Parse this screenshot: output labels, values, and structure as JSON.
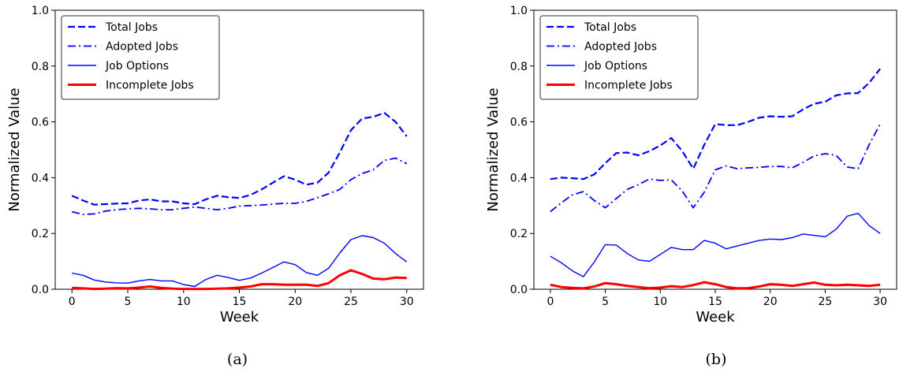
{
  "chart_data": [
    {
      "type": "line",
      "panel_label": "(a)",
      "xlabel": "Week",
      "ylabel": "Normalized Value",
      "xlim": [
        -1.5,
        31.5
      ],
      "ylim": [
        0,
        1.0
      ],
      "xticks": [
        0,
        5,
        10,
        15,
        20,
        25,
        30
      ],
      "yticks": [
        0.0,
        0.2,
        0.4,
        0.6,
        0.8,
        1.0
      ],
      "grid": false,
      "legend_position": "top-left",
      "x": [
        0,
        1,
        2,
        3,
        4,
        5,
        6,
        7,
        8,
        9,
        10,
        11,
        12,
        13,
        14,
        15,
        16,
        17,
        18,
        19,
        20,
        21,
        22,
        23,
        24,
        25,
        26,
        27,
        28,
        29,
        30
      ],
      "series": [
        {
          "name": "Total Jobs",
          "style": "dashed",
          "color": "#0000ff",
          "values": [
            0.335,
            0.318,
            0.303,
            0.305,
            0.307,
            0.308,
            0.318,
            0.322,
            0.315,
            0.315,
            0.308,
            0.305,
            0.322,
            0.335,
            0.33,
            0.327,
            0.338,
            0.358,
            0.382,
            0.405,
            0.393,
            0.375,
            0.382,
            0.418,
            0.49,
            0.57,
            0.612,
            0.618,
            0.632,
            0.6,
            0.548
          ]
        },
        {
          "name": "Adopted Jobs",
          "style": "dashdot",
          "color": "#0000ff",
          "values": [
            0.278,
            0.268,
            0.27,
            0.28,
            0.285,
            0.288,
            0.29,
            0.288,
            0.285,
            0.285,
            0.29,
            0.295,
            0.29,
            0.285,
            0.29,
            0.298,
            0.3,
            0.302,
            0.305,
            0.308,
            0.308,
            0.315,
            0.328,
            0.342,
            0.358,
            0.393,
            0.415,
            0.428,
            0.462,
            0.47,
            0.45
          ]
        },
        {
          "name": "Job Options",
          "style": "solid",
          "color": "#0000ff",
          "values": [
            0.058,
            0.05,
            0.033,
            0.026,
            0.023,
            0.022,
            0.03,
            0.035,
            0.03,
            0.03,
            0.017,
            0.01,
            0.035,
            0.05,
            0.042,
            0.032,
            0.04,
            0.058,
            0.078,
            0.098,
            0.088,
            0.06,
            0.05,
            0.075,
            0.13,
            0.178,
            0.192,
            0.185,
            0.165,
            0.128,
            0.098
          ]
        },
        {
          "name": "Incomplete Jobs",
          "style": "solid-thick",
          "color": "#ff0000",
          "values": [
            0.005,
            0.003,
            0.001,
            0.002,
            0.004,
            0.003,
            0.006,
            0.01,
            0.005,
            0.002,
            0.001,
            0.001,
            0.001,
            0.002,
            0.003,
            0.006,
            0.01,
            0.018,
            0.018,
            0.016,
            0.016,
            0.016,
            0.012,
            0.022,
            0.05,
            0.068,
            0.055,
            0.038,
            0.036,
            0.042,
            0.04
          ]
        }
      ]
    },
    {
      "type": "line",
      "panel_label": "(b)",
      "xlabel": "Week",
      "ylabel": "Normalized Value",
      "xlim": [
        -1.5,
        31.5
      ],
      "ylim": [
        0,
        1.0
      ],
      "xticks": [
        0,
        5,
        10,
        15,
        20,
        25,
        30
      ],
      "yticks": [
        0.0,
        0.2,
        0.4,
        0.6,
        0.8,
        1.0
      ],
      "grid": false,
      "legend_position": "top-left",
      "x": [
        0,
        1,
        2,
        3,
        4,
        5,
        6,
        7,
        8,
        9,
        10,
        11,
        12,
        13,
        14,
        15,
        16,
        17,
        18,
        19,
        20,
        21,
        22,
        23,
        24,
        25,
        26,
        27,
        28,
        29,
        30
      ],
      "series": [
        {
          "name": "Total Jobs",
          "style": "dashed",
          "color": "#0000ff",
          "values": [
            0.395,
            0.4,
            0.398,
            0.395,
            0.412,
            0.452,
            0.488,
            0.49,
            0.48,
            0.495,
            0.515,
            0.542,
            0.495,
            0.432,
            0.518,
            0.592,
            0.588,
            0.588,
            0.6,
            0.615,
            0.62,
            0.618,
            0.62,
            0.645,
            0.665,
            0.672,
            0.695,
            0.702,
            0.703,
            0.74,
            0.79
          ]
        },
        {
          "name": "Adopted Jobs",
          "style": "dashdot",
          "color": "#0000ff",
          "values": [
            0.278,
            0.31,
            0.338,
            0.35,
            0.318,
            0.292,
            0.325,
            0.358,
            0.375,
            0.395,
            0.39,
            0.392,
            0.352,
            0.292,
            0.348,
            0.428,
            0.442,
            0.432,
            0.435,
            0.437,
            0.44,
            0.44,
            0.435,
            0.455,
            0.478,
            0.486,
            0.48,
            0.438,
            0.432,
            0.518,
            0.592
          ]
        },
        {
          "name": "Job Options",
          "style": "solid",
          "color": "#0000ff",
          "values": [
            0.118,
            0.095,
            0.066,
            0.045,
            0.098,
            0.16,
            0.158,
            0.128,
            0.105,
            0.1,
            0.125,
            0.15,
            0.142,
            0.142,
            0.175,
            0.165,
            0.145,
            0.155,
            0.165,
            0.175,
            0.18,
            0.178,
            0.185,
            0.198,
            0.193,
            0.188,
            0.215,
            0.262,
            0.272,
            0.228,
            0.2
          ]
        },
        {
          "name": "Incomplete Jobs",
          "style": "solid-thick",
          "color": "#ff0000",
          "values": [
            0.016,
            0.008,
            0.005,
            0.003,
            0.01,
            0.022,
            0.018,
            0.012,
            0.008,
            0.004,
            0.006,
            0.011,
            0.008,
            0.015,
            0.025,
            0.018,
            0.008,
            0.003,
            0.004,
            0.01,
            0.018,
            0.016,
            0.012,
            0.018,
            0.024,
            0.016,
            0.014,
            0.016,
            0.014,
            0.012,
            0.016
          ]
        }
      ]
    }
  ]
}
